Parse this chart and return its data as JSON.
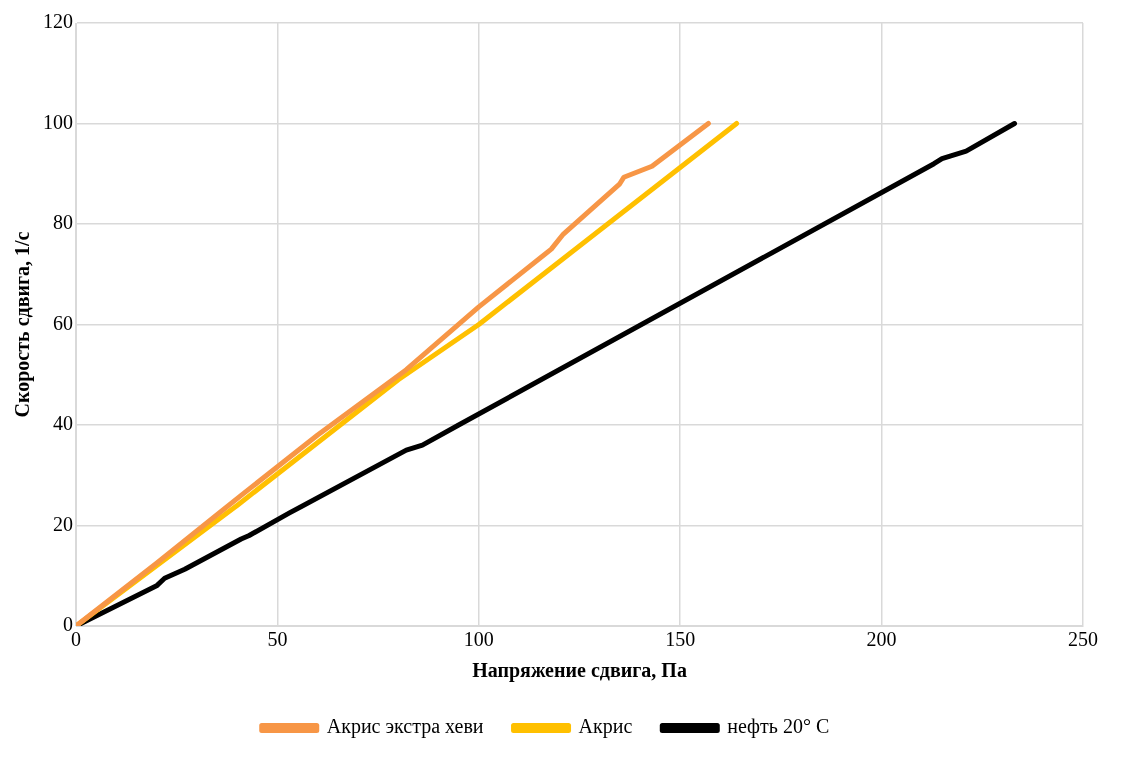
{
  "chart_data": {
    "type": "line",
    "xlabel": "Напряжение сдвига, Па",
    "ylabel": "Скорость сдвига, 1/с",
    "xlim": [
      0,
      250
    ],
    "xticks": [
      0,
      50,
      100,
      150,
      200,
      250
    ],
    "ylim": [
      0,
      120
    ],
    "yticks": [
      0,
      20,
      40,
      60,
      80,
      100,
      120
    ],
    "grid": true,
    "legend": "bottom",
    "marker": "none",
    "line_style": "solid",
    "series": [
      {
        "name": "Акрис экстра хеви",
        "color": "#f79646",
        "x": [
          0,
          20,
          41,
          60,
          82,
          100,
          118,
          121,
          135,
          136,
          143,
          157
        ],
        "values": [
          0,
          12.5,
          26,
          38,
          51,
          63.5,
          75,
          78,
          88,
          89.3,
          91.5,
          100
        ]
      },
      {
        "name": "Акрис",
        "color": "#ffc000",
        "x": [
          0,
          40,
          80,
          100,
          164
        ],
        "values": [
          0,
          24,
          49,
          60,
          100
        ]
      },
      {
        "name": "нефть 20° С",
        "color": "#000000",
        "x": [
          0,
          20,
          22,
          27,
          41,
          43,
          53,
          82,
          86,
          95,
          213,
          215,
          221,
          233
        ],
        "values": [
          0,
          8,
          9.5,
          11.3,
          17.3,
          18,
          22.5,
          35,
          36,
          40,
          92,
          93,
          94.5,
          100
        ]
      }
    ]
  }
}
